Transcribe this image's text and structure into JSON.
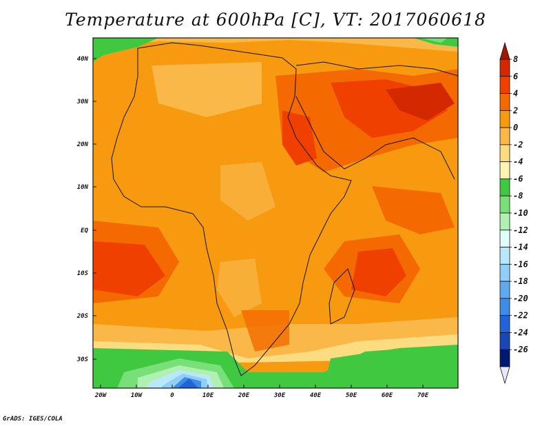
{
  "title": "Temperature at 600hPa [C], VT: 2017060618",
  "credit": "GrADS: IGES/COLA",
  "map": {
    "lat_labels": [
      "40N",
      "30N",
      "20N",
      "10N",
      "EQ",
      "10S",
      "20S",
      "30S"
    ],
    "lon_labels": [
      "20W",
      "10W",
      "0",
      "10E",
      "20E",
      "30E",
      "40E",
      "50E",
      "60E",
      "70E"
    ]
  },
  "colorbar": {
    "labels": [
      "8",
      "6",
      "4",
      "2",
      "0",
      "-2",
      "-4",
      "-6",
      "-8",
      "-10",
      "-12",
      "-14",
      "-16",
      "-18",
      "-20",
      "-22",
      "-24",
      "-26"
    ],
    "colors": [
      "#a01800",
      "#d42800",
      "#f04000",
      "#f46a00",
      "#f89a10",
      "#fab848",
      "#fcdc80",
      "#fff4b0",
      "#40c840",
      "#78e078",
      "#b0f0b0",
      "#e0fff8",
      "#b8e8fa",
      "#90d0f8",
      "#60a8f0",
      "#3c8ce8",
      "#2064d8",
      "#1848b8",
      "#001870",
      "#e8e8ff"
    ]
  }
}
